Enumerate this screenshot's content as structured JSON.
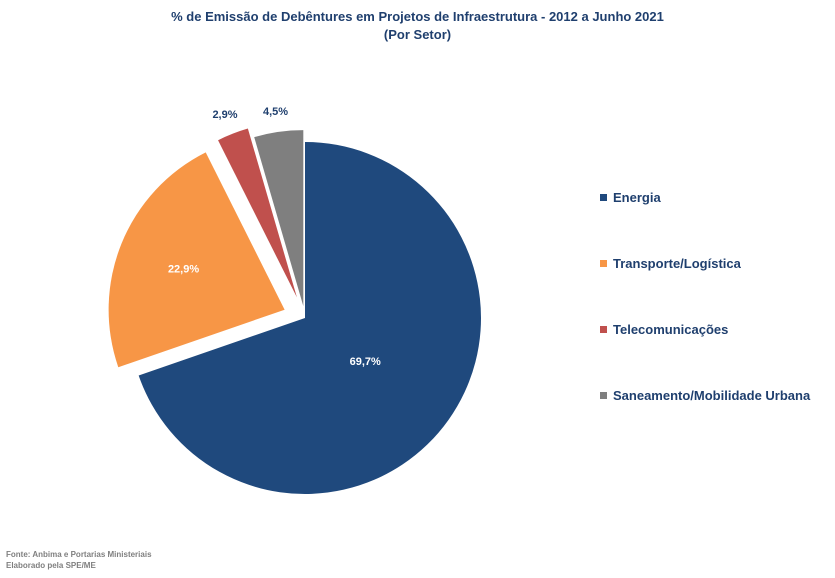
{
  "chart_data": {
    "type": "pie",
    "title": "% de Emissão de Debêntures em Projetos de Infraestrutura - 2012 a Junho 2021",
    "subtitle": "(Por Setor)",
    "legend_position": "right",
    "slices": [
      {
        "name": "Energia",
        "value": 69.7,
        "label": "69,7%",
        "color": "#1f497d",
        "label_color": "#ffffff",
        "exploded": false
      },
      {
        "name": "Transporte/Logística",
        "value": 22.9,
        "label": "22,9%",
        "color": "#f79646",
        "label_color": "#ffffff",
        "exploded": true
      },
      {
        "name": "Telecomunicações",
        "value": 2.9,
        "label": "2,9%",
        "color": "#c0504d",
        "label_color": "#1f3f6e",
        "exploded": true
      },
      {
        "name": "Saneamento/Mobilidade Urbana",
        "value": 4.5,
        "label": "4,5%",
        "color": "#7f7f7f",
        "label_color": "#1f3f6e",
        "exploded": true
      }
    ]
  },
  "footer": {
    "source": "Fonte: Anbima e Portarias Ministeriais",
    "credit": "Elaborado pela SPE/ME"
  }
}
